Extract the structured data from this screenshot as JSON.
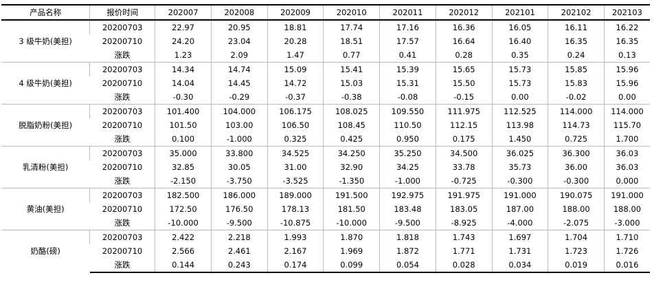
{
  "table": {
    "headers": [
      "产品名称",
      "报价时间",
      "202007",
      "202008",
      "202009",
      "202010",
      "202011",
      "202012",
      "202101",
      "202102",
      "202103"
    ],
    "groups": [
      {
        "name": "3 级牛奶(美担)",
        "rows": [
          {
            "label": "20200703",
            "values": [
              "22.97",
              "20.95",
              "18.81",
              "17.74",
              "17.16",
              "16.36",
              "16.05",
              "16.11",
              "16.22"
            ]
          },
          {
            "label": "20200710",
            "values": [
              "24.20",
              "23.04",
              "20.28",
              "18.51",
              "17.57",
              "16.64",
              "16.40",
              "16.35",
              "16.35"
            ]
          },
          {
            "label": "涨跌",
            "values": [
              "1.23",
              "2.09",
              "1.47",
              "0.77",
              "0.41",
              "0.28",
              "0.35",
              "0.24",
              "0.13"
            ]
          }
        ]
      },
      {
        "name": "4 级牛奶(美担)",
        "rows": [
          {
            "label": "20200703",
            "values": [
              "14.34",
              "14.74",
              "15.09",
              "15.41",
              "15.39",
              "15.65",
              "15.73",
              "15.85",
              "15.96"
            ]
          },
          {
            "label": "20200710",
            "values": [
              "14.04",
              "14.45",
              "14.72",
              "15.03",
              "15.31",
              "15.50",
              "15.73",
              "15.83",
              "15.96"
            ]
          },
          {
            "label": "涨跌",
            "values": [
              "-0.30",
              "-0.29",
              "-0.37",
              "-0.38",
              "-0.08",
              "-0.15",
              "0.00",
              "-0.02",
              "0.00"
            ]
          }
        ]
      },
      {
        "name": "脱脂奶粉(美担)",
        "rows": [
          {
            "label": "20200703",
            "values": [
              "101.400",
              "104.000",
              "106.175",
              "108.025",
              "109.550",
              "111.975",
              "112.525",
              "114.000",
              "114.000"
            ]
          },
          {
            "label": "20200710",
            "values": [
              "101.50",
              "103.00",
              "106.50",
              "108.45",
              "110.50",
              "112.15",
              "113.98",
              "114.73",
              "115.70"
            ]
          },
          {
            "label": "涨跌",
            "values": [
              "0.100",
              "-1.000",
              "0.325",
              "0.425",
              "0.950",
              "0.175",
              "1.450",
              "0.725",
              "1.700"
            ]
          }
        ]
      },
      {
        "name": "乳清粉(美担)",
        "rows": [
          {
            "label": "20200703",
            "values": [
              "35.000",
              "33.800",
              "34.525",
              "34.250",
              "35.250",
              "34.500",
              "36.025",
              "36.300",
              "36.03"
            ]
          },
          {
            "label": "20200710",
            "values": [
              "32.85",
              "30.05",
              "31.00",
              "32.90",
              "34.25",
              "33.78",
              "35.73",
              "36.00",
              "36.03"
            ]
          },
          {
            "label": "涨跌",
            "values": [
              "-2.150",
              "-3.750",
              "-3.525",
              "-1.350",
              "-1.000",
              "-0.725",
              "-0.300",
              "-0.300",
              "0.000"
            ]
          }
        ]
      },
      {
        "name": "黄油(美担)",
        "rows": [
          {
            "label": "20200703",
            "values": [
              "182.500",
              "186.000",
              "189.000",
              "191.500",
              "192.975",
              "191.975",
              "191.000",
              "190.075",
              "191.000"
            ]
          },
          {
            "label": "20200710",
            "values": [
              "172.50",
              "176.50",
              "178.13",
              "181.50",
              "183.48",
              "183.05",
              "187.00",
              "188.00",
              "188.00"
            ]
          },
          {
            "label": "涨跌",
            "values": [
              "-10.000",
              "-9.500",
              "-10.875",
              "-10.000",
              "-9.500",
              "-8.925",
              "-4.000",
              "-2.075",
              "-3.000"
            ]
          }
        ]
      },
      {
        "name": "奶酪(磅)",
        "rows": [
          {
            "label": "20200703",
            "values": [
              "2.422",
              "2.218",
              "1.993",
              "1.870",
              "1.818",
              "1.743",
              "1.697",
              "1.704",
              "1.710"
            ]
          },
          {
            "label": "20200710",
            "values": [
              "2.566",
              "2.461",
              "2.167",
              "1.969",
              "1.872",
              "1.771",
              "1.731",
              "1.723",
              "1.726"
            ]
          },
          {
            "label": "涨跌",
            "values": [
              "0.144",
              "0.243",
              "0.174",
              "0.099",
              "0.054",
              "0.028",
              "0.034",
              "0.019",
              "0.016"
            ]
          }
        ]
      }
    ]
  }
}
